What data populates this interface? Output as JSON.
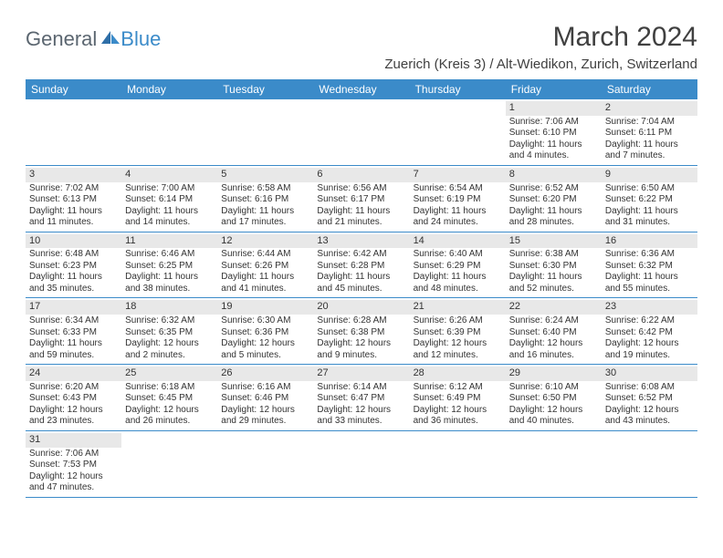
{
  "logo": {
    "general": "General",
    "blue": "Blue"
  },
  "title": "March 2024",
  "location": "Zuerich (Kreis 3) / Alt-Wiedikon, Zurich, Switzerland",
  "colors": {
    "header_bg": "#3b8bc9",
    "header_text": "#ffffff",
    "daynum_bg": "#e8e8e8",
    "text": "#333333",
    "logo_gray": "#5b6670",
    "logo_blue": "#3b8bc9",
    "week_border": "#3b8bc9"
  },
  "dow": [
    "Sunday",
    "Monday",
    "Tuesday",
    "Wednesday",
    "Thursday",
    "Friday",
    "Saturday"
  ],
  "weeks": [
    [
      null,
      null,
      null,
      null,
      null,
      {
        "n": "1",
        "sr": "Sunrise: 7:06 AM",
        "ss": "Sunset: 6:10 PM",
        "d1": "Daylight: 11 hours",
        "d2": "and 4 minutes."
      },
      {
        "n": "2",
        "sr": "Sunrise: 7:04 AM",
        "ss": "Sunset: 6:11 PM",
        "d1": "Daylight: 11 hours",
        "d2": "and 7 minutes."
      }
    ],
    [
      {
        "n": "3",
        "sr": "Sunrise: 7:02 AM",
        "ss": "Sunset: 6:13 PM",
        "d1": "Daylight: 11 hours",
        "d2": "and 11 minutes."
      },
      {
        "n": "4",
        "sr": "Sunrise: 7:00 AM",
        "ss": "Sunset: 6:14 PM",
        "d1": "Daylight: 11 hours",
        "d2": "and 14 minutes."
      },
      {
        "n": "5",
        "sr": "Sunrise: 6:58 AM",
        "ss": "Sunset: 6:16 PM",
        "d1": "Daylight: 11 hours",
        "d2": "and 17 minutes."
      },
      {
        "n": "6",
        "sr": "Sunrise: 6:56 AM",
        "ss": "Sunset: 6:17 PM",
        "d1": "Daylight: 11 hours",
        "d2": "and 21 minutes."
      },
      {
        "n": "7",
        "sr": "Sunrise: 6:54 AM",
        "ss": "Sunset: 6:19 PM",
        "d1": "Daylight: 11 hours",
        "d2": "and 24 minutes."
      },
      {
        "n": "8",
        "sr": "Sunrise: 6:52 AM",
        "ss": "Sunset: 6:20 PM",
        "d1": "Daylight: 11 hours",
        "d2": "and 28 minutes."
      },
      {
        "n": "9",
        "sr": "Sunrise: 6:50 AM",
        "ss": "Sunset: 6:22 PM",
        "d1": "Daylight: 11 hours",
        "d2": "and 31 minutes."
      }
    ],
    [
      {
        "n": "10",
        "sr": "Sunrise: 6:48 AM",
        "ss": "Sunset: 6:23 PM",
        "d1": "Daylight: 11 hours",
        "d2": "and 35 minutes."
      },
      {
        "n": "11",
        "sr": "Sunrise: 6:46 AM",
        "ss": "Sunset: 6:25 PM",
        "d1": "Daylight: 11 hours",
        "d2": "and 38 minutes."
      },
      {
        "n": "12",
        "sr": "Sunrise: 6:44 AM",
        "ss": "Sunset: 6:26 PM",
        "d1": "Daylight: 11 hours",
        "d2": "and 41 minutes."
      },
      {
        "n": "13",
        "sr": "Sunrise: 6:42 AM",
        "ss": "Sunset: 6:28 PM",
        "d1": "Daylight: 11 hours",
        "d2": "and 45 minutes."
      },
      {
        "n": "14",
        "sr": "Sunrise: 6:40 AM",
        "ss": "Sunset: 6:29 PM",
        "d1": "Daylight: 11 hours",
        "d2": "and 48 minutes."
      },
      {
        "n": "15",
        "sr": "Sunrise: 6:38 AM",
        "ss": "Sunset: 6:30 PM",
        "d1": "Daylight: 11 hours",
        "d2": "and 52 minutes."
      },
      {
        "n": "16",
        "sr": "Sunrise: 6:36 AM",
        "ss": "Sunset: 6:32 PM",
        "d1": "Daylight: 11 hours",
        "d2": "and 55 minutes."
      }
    ],
    [
      {
        "n": "17",
        "sr": "Sunrise: 6:34 AM",
        "ss": "Sunset: 6:33 PM",
        "d1": "Daylight: 11 hours",
        "d2": "and 59 minutes."
      },
      {
        "n": "18",
        "sr": "Sunrise: 6:32 AM",
        "ss": "Sunset: 6:35 PM",
        "d1": "Daylight: 12 hours",
        "d2": "and 2 minutes."
      },
      {
        "n": "19",
        "sr": "Sunrise: 6:30 AM",
        "ss": "Sunset: 6:36 PM",
        "d1": "Daylight: 12 hours",
        "d2": "and 5 minutes."
      },
      {
        "n": "20",
        "sr": "Sunrise: 6:28 AM",
        "ss": "Sunset: 6:38 PM",
        "d1": "Daylight: 12 hours",
        "d2": "and 9 minutes."
      },
      {
        "n": "21",
        "sr": "Sunrise: 6:26 AM",
        "ss": "Sunset: 6:39 PM",
        "d1": "Daylight: 12 hours",
        "d2": "and 12 minutes."
      },
      {
        "n": "22",
        "sr": "Sunrise: 6:24 AM",
        "ss": "Sunset: 6:40 PM",
        "d1": "Daylight: 12 hours",
        "d2": "and 16 minutes."
      },
      {
        "n": "23",
        "sr": "Sunrise: 6:22 AM",
        "ss": "Sunset: 6:42 PM",
        "d1": "Daylight: 12 hours",
        "d2": "and 19 minutes."
      }
    ],
    [
      {
        "n": "24",
        "sr": "Sunrise: 6:20 AM",
        "ss": "Sunset: 6:43 PM",
        "d1": "Daylight: 12 hours",
        "d2": "and 23 minutes."
      },
      {
        "n": "25",
        "sr": "Sunrise: 6:18 AM",
        "ss": "Sunset: 6:45 PM",
        "d1": "Daylight: 12 hours",
        "d2": "and 26 minutes."
      },
      {
        "n": "26",
        "sr": "Sunrise: 6:16 AM",
        "ss": "Sunset: 6:46 PM",
        "d1": "Daylight: 12 hours",
        "d2": "and 29 minutes."
      },
      {
        "n": "27",
        "sr": "Sunrise: 6:14 AM",
        "ss": "Sunset: 6:47 PM",
        "d1": "Daylight: 12 hours",
        "d2": "and 33 minutes."
      },
      {
        "n": "28",
        "sr": "Sunrise: 6:12 AM",
        "ss": "Sunset: 6:49 PM",
        "d1": "Daylight: 12 hours",
        "d2": "and 36 minutes."
      },
      {
        "n": "29",
        "sr": "Sunrise: 6:10 AM",
        "ss": "Sunset: 6:50 PM",
        "d1": "Daylight: 12 hours",
        "d2": "and 40 minutes."
      },
      {
        "n": "30",
        "sr": "Sunrise: 6:08 AM",
        "ss": "Sunset: 6:52 PM",
        "d1": "Daylight: 12 hours",
        "d2": "and 43 minutes."
      }
    ],
    [
      {
        "n": "31",
        "sr": "Sunrise: 7:06 AM",
        "ss": "Sunset: 7:53 PM",
        "d1": "Daylight: 12 hours",
        "d2": "and 47 minutes."
      },
      null,
      null,
      null,
      null,
      null,
      null
    ]
  ]
}
